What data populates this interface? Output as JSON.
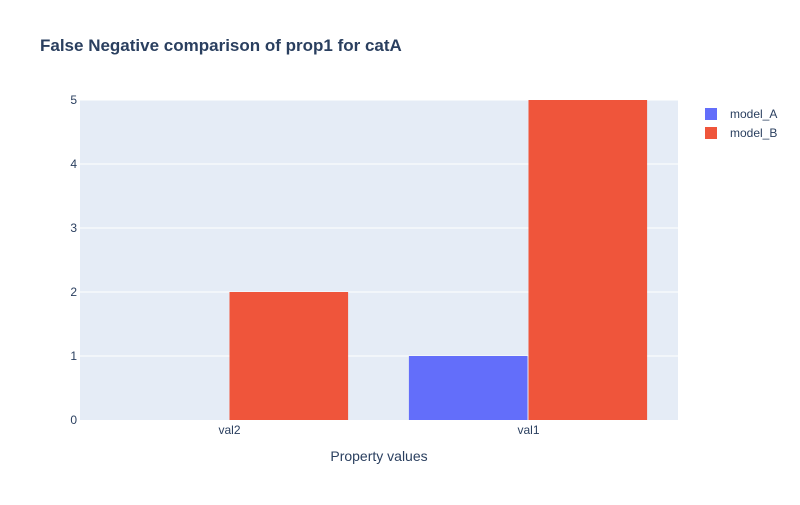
{
  "chart_data": {
    "type": "bar",
    "title": "False Negative comparison of prop1 for catA",
    "xlabel": "Property values",
    "ylabel": "",
    "categories": [
      "val2",
      "val1"
    ],
    "series": [
      {
        "name": "model_A",
        "color": "#636efa",
        "values": [
          0,
          1
        ]
      },
      {
        "name": "model_B",
        "color": "#ef553b",
        "values": [
          2,
          5
        ]
      }
    ],
    "ylim": [
      0,
      5
    ],
    "yticks": [
      0,
      1,
      2,
      3,
      4,
      5
    ],
    "grid": true,
    "legend_position": "top-right",
    "plot_background": "#e5ecf6",
    "title_color": "#2a3f5f",
    "text_color": "#2a3f5f"
  }
}
